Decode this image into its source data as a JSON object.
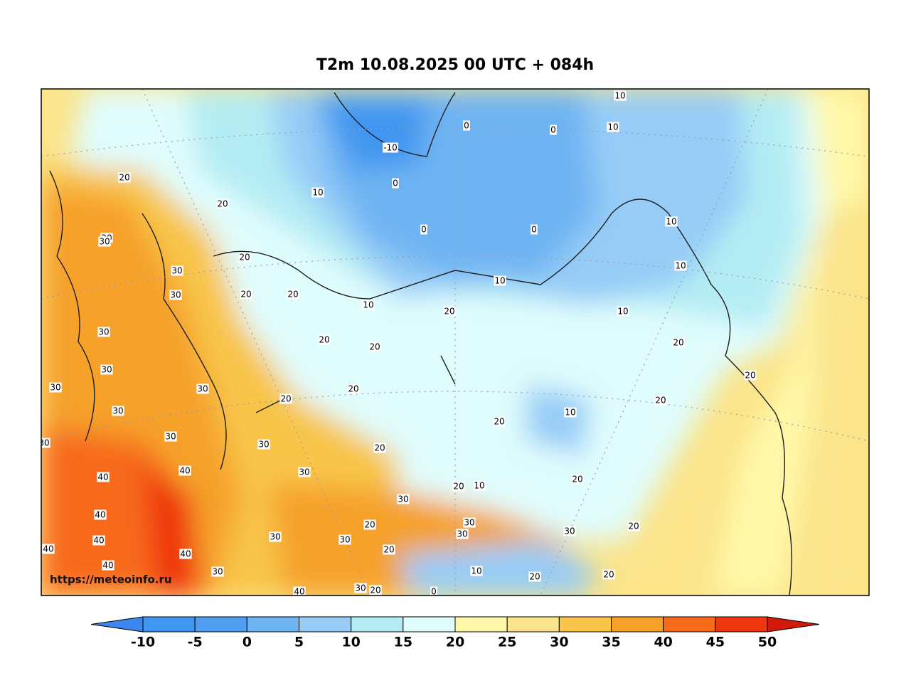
{
  "title": "T2m 10.08.2025 00 UTC + 084h",
  "watermark": "https://meteoinfo.ru",
  "contour_labels": [
    "20",
    "20",
    "20",
    "30",
    "30",
    "30",
    "30",
    "30",
    "30",
    "30",
    "30",
    "30",
    "30",
    "30",
    "40",
    "40",
    "40",
    "40",
    "40",
    "40",
    "40",
    "40",
    "30",
    "30",
    "30",
    "30",
    "30",
    "30",
    "30",
    "30",
    "30",
    "20",
    "20",
    "20",
    "20",
    "20",
    "20",
    "20",
    "20",
    "20",
    "20",
    "20",
    "20",
    "20",
    "20",
    "20",
    "20",
    "20",
    "20",
    "20",
    "20",
    "20",
    "10",
    "10",
    "10",
    "10",
    "10",
    "10",
    "10",
    "10",
    "10",
    "10",
    "10",
    "-10",
    "0",
    "0",
    "0",
    "0",
    "0",
    "0"
  ],
  "colorbar": {
    "ticks": [
      -10,
      -5,
      0,
      5,
      10,
      15,
      20,
      25,
      30,
      35,
      40,
      45,
      50
    ],
    "colors": [
      "#4196f0",
      "#509ff0",
      "#6eb4f3",
      "#96ccf6",
      "#b4ecf4",
      "#e0fdfd",
      "#fff8a8",
      "#fbe48a",
      "#f8c54a",
      "#f5a12a",
      "#f76b1a",
      "#ef3610"
    ],
    "under_color": "#3b87ef",
    "over_color": "#d31a0a"
  }
}
